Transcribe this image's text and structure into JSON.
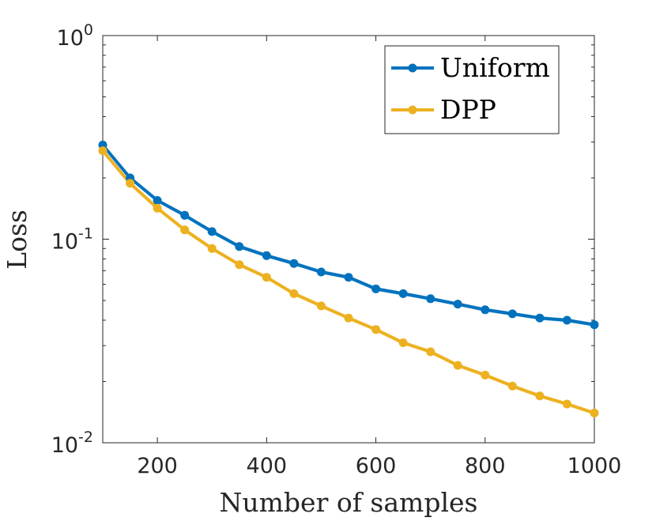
{
  "chart_data": {
    "type": "line",
    "xlabel": "Number of samples",
    "ylabel": "Loss",
    "xlim": [
      100,
      1000
    ],
    "ylim": [
      0.01,
      1
    ],
    "yscale": "log",
    "xticks": [
      200,
      400,
      600,
      800,
      1000
    ],
    "yticks": [
      {
        "value": 1,
        "base": "10",
        "exp": "0"
      },
      {
        "value": 0.1,
        "base": "10",
        "exp": "-1"
      },
      {
        "value": 0.01,
        "base": "10",
        "exp": "-2"
      }
    ],
    "legend_position": "top-right",
    "x": [
      100,
      150,
      200,
      250,
      300,
      350,
      400,
      450,
      500,
      550,
      600,
      650,
      700,
      750,
      800,
      850,
      900,
      950,
      1000
    ],
    "series": [
      {
        "name": "Uniform",
        "color": "#0072BD",
        "values": [
          0.29,
          0.2,
          0.155,
          0.131,
          0.109,
          0.092,
          0.083,
          0.076,
          0.069,
          0.065,
          0.057,
          0.054,
          0.051,
          0.048,
          0.045,
          0.043,
          0.041,
          0.04,
          0.038
        ]
      },
      {
        "name": "DPP",
        "color": "#EDB120",
        "values": [
          0.272,
          0.188,
          0.142,
          0.111,
          0.09,
          0.075,
          0.065,
          0.054,
          0.047,
          0.041,
          0.036,
          0.031,
          0.028,
          0.024,
          0.0215,
          0.019,
          0.017,
          0.0155,
          0.014
        ]
      }
    ]
  }
}
